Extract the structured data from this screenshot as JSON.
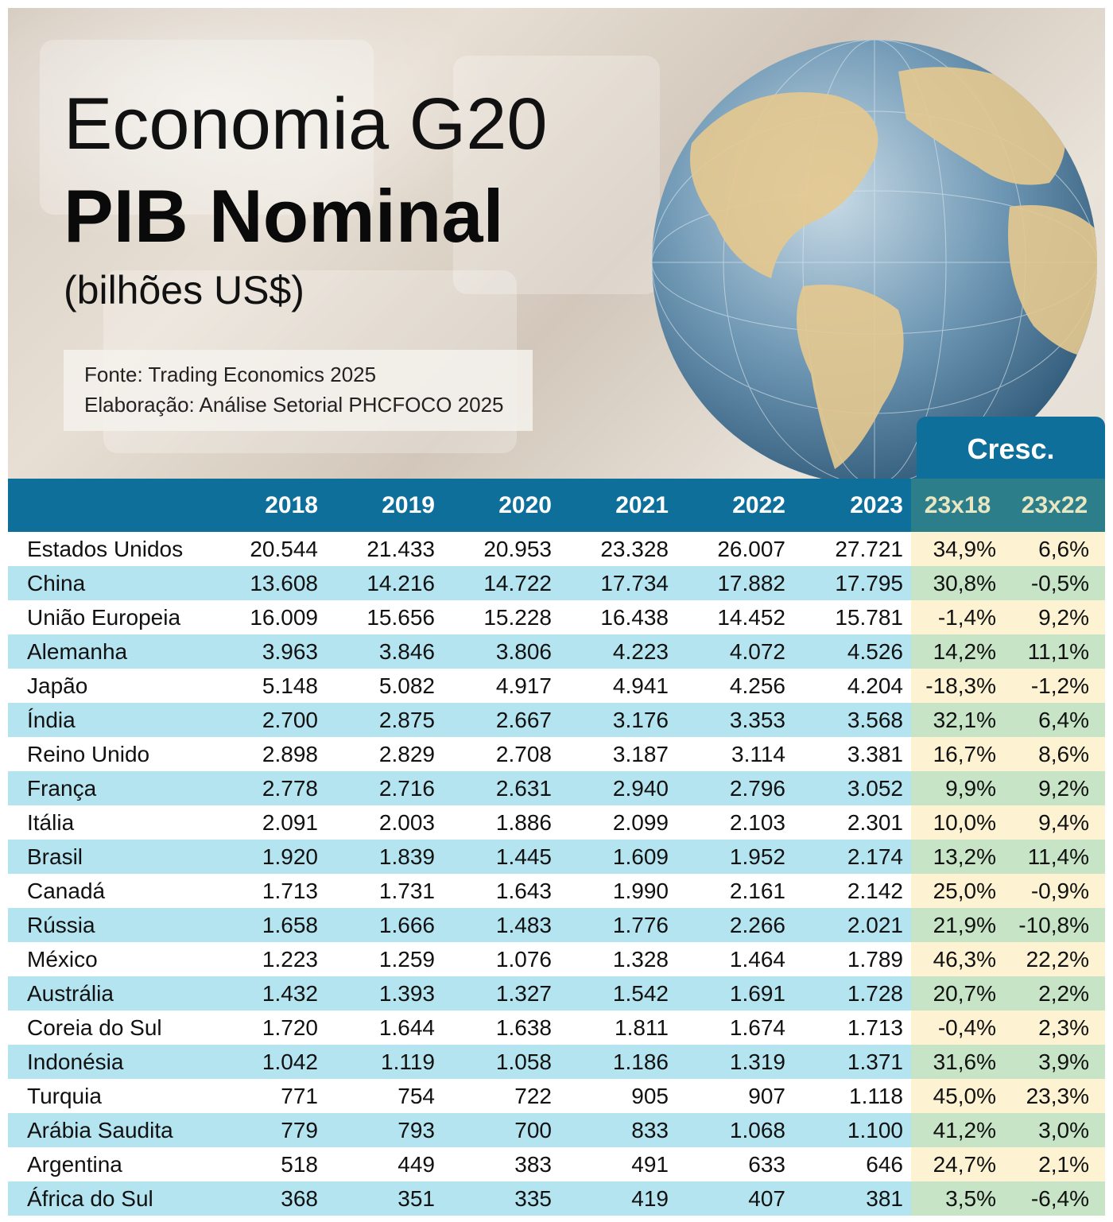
{
  "header": {
    "title_line1": "Economia G20",
    "title_line2": "PIB Nominal",
    "title_line3": "(bilhões US$)",
    "source_line1": "Fonte: Trading Economics 2025",
    "source_line2": "Elaboração: Análise Setorial PHCFOCO 2025"
  },
  "growth_header": "Cresc.",
  "columns": [
    "",
    "2018",
    "2019",
    "2020",
    "2021",
    "2022",
    "2023",
    "23x18",
    "23x22"
  ],
  "rows": [
    [
      "Estados Unidos",
      "20.544",
      "21.433",
      "20.953",
      "23.328",
      "26.007",
      "27.721",
      "34,9%",
      "6,6%"
    ],
    [
      "China",
      "13.608",
      "14.216",
      "14.722",
      "17.734",
      "17.882",
      "17.795",
      "30,8%",
      "-0,5%"
    ],
    [
      "União Europeia",
      "16.009",
      "15.656",
      "15.228",
      "16.438",
      "14.452",
      "15.781",
      "-1,4%",
      "9,2%"
    ],
    [
      "Alemanha",
      "3.963",
      "3.846",
      "3.806",
      "4.223",
      "4.072",
      "4.526",
      "14,2%",
      "11,1%"
    ],
    [
      "Japão",
      "5.148",
      "5.082",
      "4.917",
      "4.941",
      "4.256",
      "4.204",
      "-18,3%",
      "-1,2%"
    ],
    [
      "Índia",
      "2.700",
      "2.875",
      "2.667",
      "3.176",
      "3.353",
      "3.568",
      "32,1%",
      "6,4%"
    ],
    [
      "Reino Unido",
      "2.898",
      "2.829",
      "2.708",
      "3.187",
      "3.114",
      "3.381",
      "16,7%",
      "8,6%"
    ],
    [
      "França",
      "2.778",
      "2.716",
      "2.631",
      "2.940",
      "2.796",
      "3.052",
      "9,9%",
      "9,2%"
    ],
    [
      "Itália",
      "2.091",
      "2.003",
      "1.886",
      "2.099",
      "2.103",
      "2.301",
      "10,0%",
      "9,4%"
    ],
    [
      "Brasil",
      "1.920",
      "1.839",
      "1.445",
      "1.609",
      "1.952",
      "2.174",
      "13,2%",
      "11,4%"
    ],
    [
      "Canadá",
      "1.713",
      "1.731",
      "1.643",
      "1.990",
      "2.161",
      "2.142",
      "25,0%",
      "-0,9%"
    ],
    [
      "Rússia",
      "1.658",
      "1.666",
      "1.483",
      "1.776",
      "2.266",
      "2.021",
      "21,9%",
      "-10,8%"
    ],
    [
      "México",
      "1.223",
      "1.259",
      "1.076",
      "1.328",
      "1.464",
      "1.789",
      "46,3%",
      "22,2%"
    ],
    [
      "Austrália",
      "1.432",
      "1.393",
      "1.327",
      "1.542",
      "1.691",
      "1.728",
      "20,7%",
      "2,2%"
    ],
    [
      "Coreia do Sul",
      "1.720",
      "1.644",
      "1.638",
      "1.811",
      "1.674",
      "1.713",
      "-0,4%",
      "2,3%"
    ],
    [
      "Indonésia",
      "1.042",
      "1.119",
      "1.058",
      "1.186",
      "1.319",
      "1.371",
      "31,6%",
      "3,9%"
    ],
    [
      "Turquia",
      "771",
      "754",
      "722",
      "905",
      "907",
      "1.118",
      "45,0%",
      "23,3%"
    ],
    [
      "Arábia Saudita",
      "779",
      "793",
      "700",
      "833",
      "1.068",
      "1.100",
      "41,2%",
      "3,0%"
    ],
    [
      "Argentina",
      "518",
      "449",
      "383",
      "491",
      "633",
      "646",
      "24,7%",
      "2,1%"
    ],
    [
      "África do Sul",
      "368",
      "351",
      "335",
      "419",
      "407",
      "381",
      "3,5%",
      "-6,4%"
    ]
  ],
  "colors": {
    "header_blue": "#0f6f9b",
    "growth_header": "#2d7e8b",
    "row_stripe": "#b3e4ef",
    "growth_light": "#fdf3d3",
    "growth_green": "#c7e5c6"
  }
}
